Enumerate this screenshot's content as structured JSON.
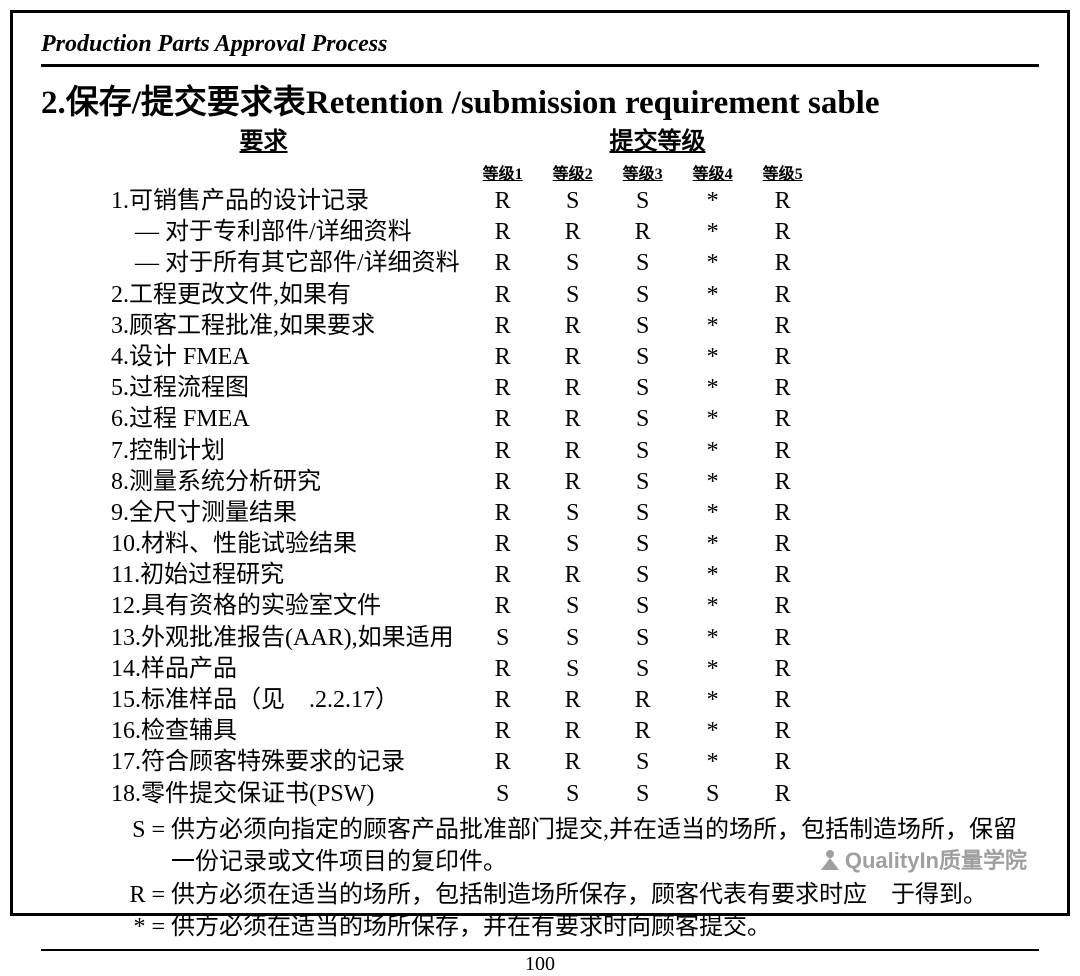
{
  "header": "Production Parts Approval Process",
  "title": "2.保存/提交要求表Retention /submission requirement sable",
  "sub_req": "要求",
  "sub_level": "提交等级",
  "columns": [
    "等级1",
    "等级2",
    "等级3",
    "等级4",
    "等级5"
  ],
  "rows": [
    {
      "label": "1.可销售产品的设计记录",
      "v": [
        "R",
        "S",
        "S",
        "*",
        "R"
      ]
    },
    {
      "label": "　— 对于专利部件/详细资料",
      "v": [
        "R",
        "R",
        "R",
        "*",
        "R"
      ]
    },
    {
      "label": "　— 对于所有其它部件/详细资料",
      "v": [
        "R",
        "S",
        "S",
        "*",
        "R"
      ]
    },
    {
      "label": "2.工程更改文件,如果有",
      "v": [
        "R",
        "S",
        "S",
        "*",
        "R"
      ]
    },
    {
      "label": "3.顾客工程批准,如果要求",
      "v": [
        "R",
        "R",
        "S",
        "*",
        "R"
      ]
    },
    {
      "label": "4.设计 FMEA",
      "v": [
        "R",
        "R",
        "S",
        "*",
        "R"
      ]
    },
    {
      "label": "5.过程流程图",
      "v": [
        "R",
        "R",
        "S",
        "*",
        "R"
      ]
    },
    {
      "label": "6.过程 FMEA",
      "v": [
        "R",
        "R",
        "S",
        "*",
        "R"
      ]
    },
    {
      "label": "7.控制计划",
      "v": [
        "R",
        "R",
        "S",
        "*",
        "R"
      ]
    },
    {
      "label": "8.测量系统分析研究",
      "v": [
        "R",
        "R",
        "S",
        "*",
        "R"
      ]
    },
    {
      "label": "9.全尺寸测量结果",
      "v": [
        "R",
        "S",
        "S",
        "*",
        "R"
      ]
    },
    {
      "label": "10.材料、性能试验结果",
      "v": [
        "R",
        "S",
        "S",
        "*",
        "R"
      ]
    },
    {
      "label": "11.初始过程研究",
      "v": [
        "R",
        "R",
        "S",
        "*",
        "R"
      ]
    },
    {
      "label": "12.具有资格的实验室文件",
      "v": [
        "R",
        "S",
        "S",
        "*",
        "R"
      ]
    },
    {
      "label": "13.外观批准报告(AAR),如果适用",
      "v": [
        "S",
        "S",
        "S",
        "*",
        "R"
      ]
    },
    {
      "label": "14.样品产品",
      "v": [
        "R",
        "S",
        "S",
        "*",
        "R"
      ]
    },
    {
      "label": "15.标准样品（见　.2.2.17）",
      "v": [
        "R",
        "R",
        "R",
        "*",
        "R"
      ]
    },
    {
      "label": "16.检查辅具",
      "v": [
        "R",
        "R",
        "R",
        "*",
        "R"
      ]
    },
    {
      "label": "17.符合顾客特殊要求的记录",
      "v": [
        "R",
        "R",
        "S",
        "*",
        "R"
      ]
    },
    {
      "label": "18.零件提交保证书(PSW)",
      "v": [
        "S",
        "S",
        "S",
        "S",
        "R"
      ]
    }
  ],
  "legend": [
    {
      "k": "S  =",
      "t": "供方必须向指定的顾客产品批准部门提交,并在适当的场所，包括制造场所，保留一份记录或文件项目的复印件。"
    },
    {
      "k": "R =",
      "t": "供方必须在适当的场所，包括制造场所保存，顾客代表有要求时应　于得到。"
    },
    {
      "k": "* =",
      "t": "供方必须在适当的场所保存，并在有要求时向顾客提交。"
    }
  ],
  "page_number": "100",
  "watermark": "QualityIn质量学院"
}
